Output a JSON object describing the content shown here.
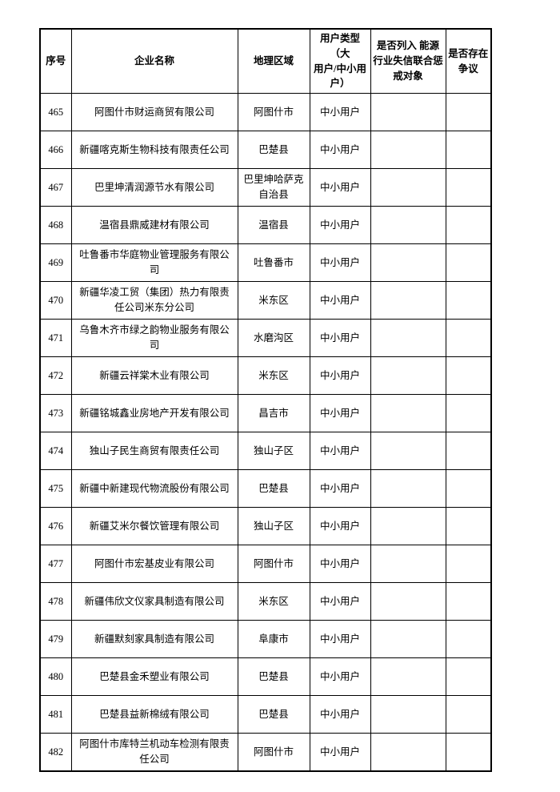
{
  "page": {
    "background_color": "#ffffff",
    "text_color": "#000000",
    "border_color": "#000000"
  },
  "table": {
    "headers": {
      "seq": "序号",
      "name": "企业名称",
      "region": "地理区域",
      "user_type": "用户类型（大\n用户/中小用\n户）",
      "dishonesty": "是否列入 能源\n行业失信联合惩\n戒对象",
      "dispute": "是否存在\n争议"
    },
    "rows": [
      {
        "seq": "465",
        "name": "阿图什市财运商贸有限公司",
        "region": "阿图什市",
        "user_type": "中小用户",
        "dishonesty": "",
        "dispute": ""
      },
      {
        "seq": "466",
        "name": "新疆喀克斯生物科技有限责任公司",
        "region": "巴楚县",
        "user_type": "中小用户",
        "dishonesty": "",
        "dispute": ""
      },
      {
        "seq": "467",
        "name": "巴里坤清润源节水有限公司",
        "region": "巴里坤哈萨克\n自治县",
        "user_type": "中小用户",
        "dishonesty": "",
        "dispute": ""
      },
      {
        "seq": "468",
        "name": "温宿县鼎威建材有限公司",
        "region": "温宿县",
        "user_type": "中小用户",
        "dishonesty": "",
        "dispute": ""
      },
      {
        "seq": "469",
        "name": "吐鲁番市华庭物业管理服务有限公\n司",
        "region": "吐鲁番市",
        "user_type": "中小用户",
        "dishonesty": "",
        "dispute": ""
      },
      {
        "seq": "470",
        "name": "新疆华凌工贸（集团）热力有限责\n任公司米东分公司",
        "region": "米东区",
        "user_type": "中小用户",
        "dishonesty": "",
        "dispute": ""
      },
      {
        "seq": "471",
        "name": "乌鲁木齐市绿之韵物业服务有限公\n司",
        "region": "水磨沟区",
        "user_type": "中小用户",
        "dishonesty": "",
        "dispute": ""
      },
      {
        "seq": "472",
        "name": "新疆云祥棠木业有限公司",
        "region": "米东区",
        "user_type": "中小用户",
        "dishonesty": "",
        "dispute": ""
      },
      {
        "seq": "473",
        "name": "新疆铭城鑫业房地产开发有限公司",
        "region": "昌吉市",
        "user_type": "中小用户",
        "dishonesty": "",
        "dispute": ""
      },
      {
        "seq": "474",
        "name": "独山子民生商贸有限责任公司",
        "region": "独山子区",
        "user_type": "中小用户",
        "dishonesty": "",
        "dispute": ""
      },
      {
        "seq": "475",
        "name": "新疆中新建现代物流股份有限公司",
        "region": "巴楚县",
        "user_type": "中小用户",
        "dishonesty": "",
        "dispute": ""
      },
      {
        "seq": "476",
        "name": "新疆艾米尔餐饮管理有限公司",
        "region": "独山子区",
        "user_type": "中小用户",
        "dishonesty": "",
        "dispute": ""
      },
      {
        "seq": "477",
        "name": "阿图什市宏基皮业有限公司",
        "region": "阿图什市",
        "user_type": "中小用户",
        "dishonesty": "",
        "dispute": ""
      },
      {
        "seq": "478",
        "name": "新疆伟欣文仪家具制造有限公司",
        "region": "米东区",
        "user_type": "中小用户",
        "dishonesty": "",
        "dispute": ""
      },
      {
        "seq": "479",
        "name": "新疆默刻家具制造有限公司",
        "region": "阜康市",
        "user_type": "中小用户",
        "dishonesty": "",
        "dispute": ""
      },
      {
        "seq": "480",
        "name": "巴楚县金禾塑业有限公司",
        "region": "巴楚县",
        "user_type": "中小用户",
        "dishonesty": "",
        "dispute": ""
      },
      {
        "seq": "481",
        "name": "巴楚县益新棉绒有限公司",
        "region": "巴楚县",
        "user_type": "中小用户",
        "dishonesty": "",
        "dispute": ""
      },
      {
        "seq": "482",
        "name": "阿图什市库特兰机动车检测有限责\n任公司",
        "region": "阿图什市",
        "user_type": "中小用户",
        "dishonesty": "",
        "dispute": ""
      }
    ]
  }
}
